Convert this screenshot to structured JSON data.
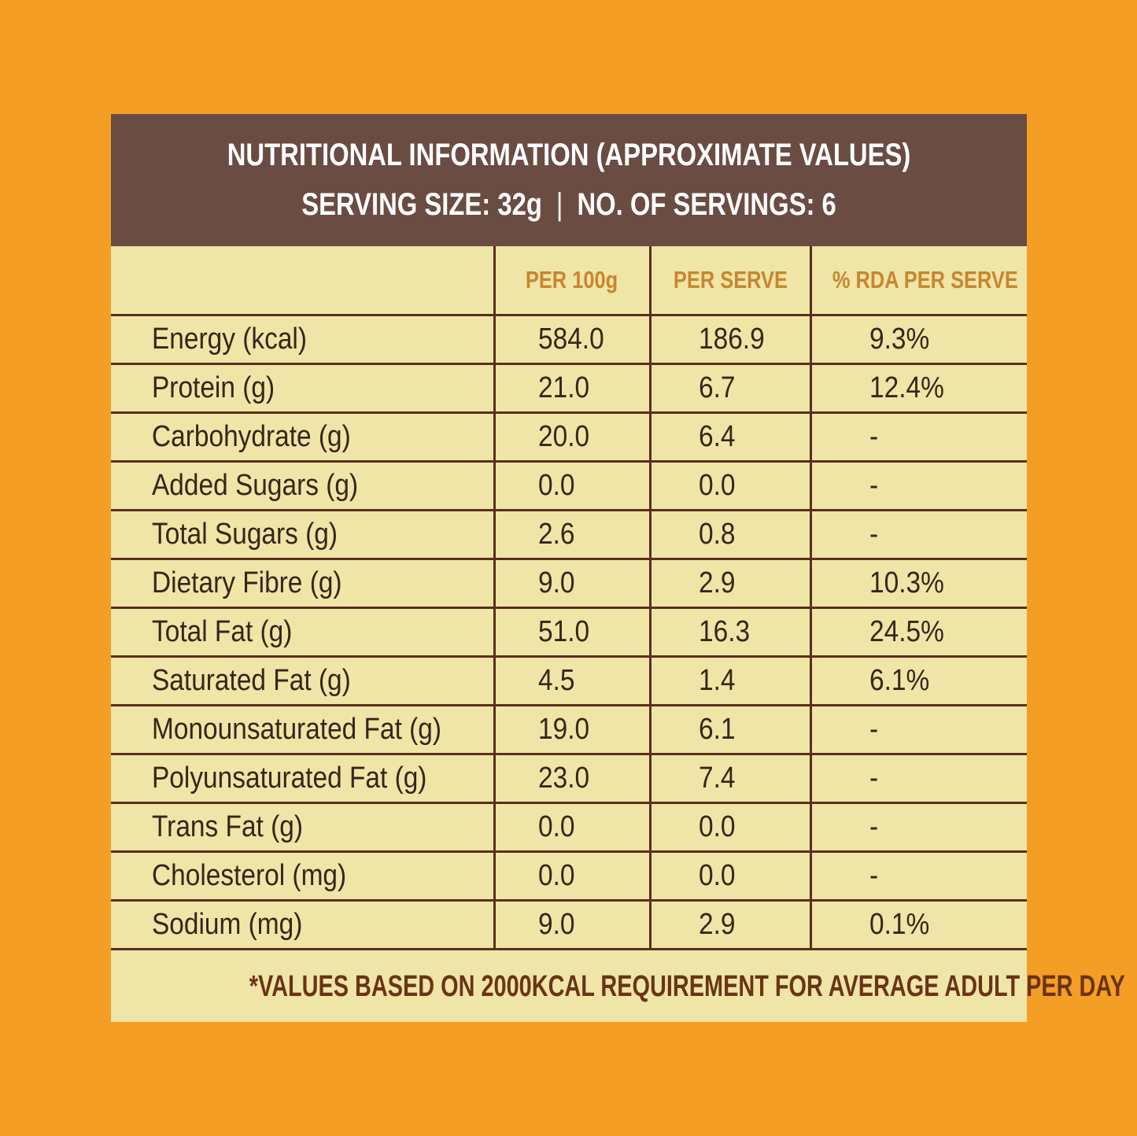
{
  "header": {
    "title": "NUTRITIONAL INFORMATION (APPROXIMATE VALUES)",
    "serving_size": "SERVING SIZE: 32g",
    "separator": "|",
    "servings": "NO. OF SERVINGS: 6"
  },
  "table": {
    "columns": [
      "",
      "PER 100g",
      "PER SERVE",
      "% RDA PER SERVE"
    ],
    "rows": [
      [
        "Energy (kcal)",
        "584.0",
        "186.9",
        "9.3%"
      ],
      [
        "Protein (g)",
        "21.0",
        "6.7",
        "12.4%"
      ],
      [
        "Carbohydrate (g)",
        "20.0",
        "6.4",
        "-"
      ],
      [
        "Added Sugars (g)",
        "0.0",
        "0.0",
        "-"
      ],
      [
        "Total Sugars (g)",
        "2.6",
        "0.8",
        "-"
      ],
      [
        "Dietary Fibre (g)",
        "9.0",
        "2.9",
        "10.3%"
      ],
      [
        "Total Fat (g)",
        "51.0",
        "16.3",
        "24.5%"
      ],
      [
        "Saturated Fat (g)",
        "4.5",
        "1.4",
        "6.1%"
      ],
      [
        "Monounsaturated Fat (g)",
        "19.0",
        "6.1",
        "-"
      ],
      [
        "Polyunsaturated Fat (g)",
        "23.0",
        "7.4",
        "-"
      ],
      [
        "Trans Fat (g)",
        "0.0",
        "0.0",
        "-"
      ],
      [
        "Cholesterol (mg)",
        "0.0",
        "0.0",
        "-"
      ],
      [
        "Sodium (mg)",
        "9.0",
        "2.9",
        "0.1%"
      ]
    ]
  },
  "footnote": "*VALUES BASED ON 2000KCAL REQUIREMENT FOR AVERAGE ADULT PER DAY",
  "colors": {
    "background": "#F59E26",
    "panel": "#EFE5A7",
    "header": "#6B4C43",
    "column_header_text": "#C8862E",
    "grid_lines": "#5A2E1C",
    "footnote_text": "#6A3417"
  }
}
